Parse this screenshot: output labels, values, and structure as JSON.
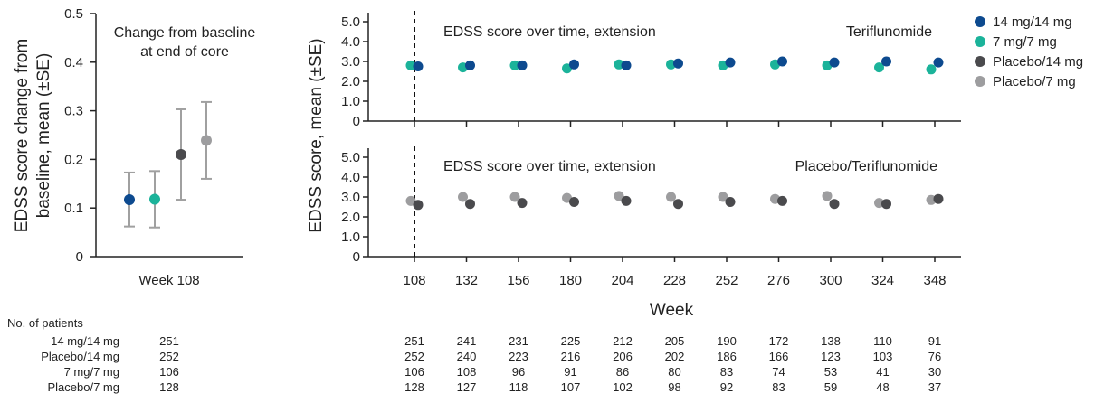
{
  "colors": {
    "14 mg/14 mg": "#0d4a8f",
    "7 mg/7 mg": "#1bb39a",
    "Placebo/14 mg": "#4a4a4d",
    "Placebo/7 mg": "#9d9d9f",
    "axis": "#222222",
    "errorbar": "#a0a0a0"
  },
  "chart_data": [
    {
      "type": "scatter",
      "title": "Change from baseline at end of core",
      "ylabel": "EDSS score change from baseline, mean (±SE)",
      "xlabel": "",
      "categories": [
        "Week 108"
      ],
      "ylim": [
        0,
        0.5
      ],
      "yticks": [
        "0",
        "0.1",
        "0.2",
        "0.3",
        "0.4",
        "0.5"
      ],
      "series": [
        {
          "name": "14 mg/14 mg",
          "value": 0.117,
          "se_low": 0.062,
          "se_high": 0.173
        },
        {
          "name": "7 mg/7 mg",
          "value": 0.118,
          "se_low": 0.06,
          "se_high": 0.176
        },
        {
          "name": "Placebo/14 mg",
          "value": 0.21,
          "se_low": 0.117,
          "se_high": 0.303
        },
        {
          "name": "Placebo/7 mg",
          "value": 0.239,
          "se_low": 0.16,
          "se_high": 0.318
        }
      ]
    },
    {
      "type": "scatter",
      "title": "EDSS score over time, extension",
      "panel_label": "Teriflunomide",
      "x": [
        108,
        132,
        156,
        180,
        204,
        228,
        252,
        276,
        300,
        324,
        348
      ],
      "ylim": [
        0,
        5.0
      ],
      "yticks": [
        "0",
        "1.0",
        "2.0",
        "3.0",
        "4.0",
        "5.0"
      ],
      "series": [
        {
          "name": "7 mg/7 mg",
          "values": [
            2.8,
            2.7,
            2.8,
            2.65,
            2.85,
            2.85,
            2.8,
            2.85,
            2.8,
            2.7,
            2.6
          ]
        },
        {
          "name": "14 mg/14 mg",
          "values": [
            2.75,
            2.8,
            2.8,
            2.85,
            2.8,
            2.9,
            2.95,
            3.0,
            2.95,
            3.0,
            2.95
          ]
        }
      ]
    },
    {
      "type": "scatter",
      "title": "EDSS score over time, extension",
      "panel_label": "Placebo/Teriflunomide",
      "x": [
        108,
        132,
        156,
        180,
        204,
        228,
        252,
        276,
        300,
        324,
        348
      ],
      "ylim": [
        0,
        5.0
      ],
      "yticks": [
        "0",
        "1.0",
        "2.0",
        "3.0",
        "4.0",
        "5.0"
      ],
      "series": [
        {
          "name": "Placebo/7 mg",
          "values": [
            2.8,
            3.0,
            3.0,
            2.95,
            3.05,
            3.0,
            3.0,
            2.9,
            3.05,
            2.7,
            2.85
          ]
        },
        {
          "name": "Placebo/14 mg",
          "values": [
            2.6,
            2.65,
            2.7,
            2.75,
            2.8,
            2.65,
            2.75,
            2.8,
            2.65,
            2.65,
            2.9
          ]
        }
      ]
    }
  ],
  "shared_ylabel": "EDSS score, mean (±SE)",
  "shared_xlabel": "Week",
  "legend": [
    "14 mg/14 mg",
    "7 mg/7 mg",
    "Placebo/14 mg",
    "Placebo/7 mg"
  ],
  "patients_table": {
    "header": "No. of patients",
    "rows": [
      {
        "label": "14 mg/14 mg",
        "core": "251",
        "values": [
          "251",
          "241",
          "231",
          "225",
          "212",
          "205",
          "190",
          "172",
          "138",
          "110",
          "91"
        ]
      },
      {
        "label": "Placebo/14 mg",
        "core": "252",
        "values": [
          "252",
          "240",
          "223",
          "216",
          "206",
          "202",
          "186",
          "166",
          "123",
          "103",
          "76"
        ]
      },
      {
        "label": "7 mg/7 mg",
        "core": "106",
        "values": [
          "106",
          "108",
          "96",
          "91",
          "86",
          "80",
          "83",
          "74",
          "53",
          "41",
          "30"
        ]
      },
      {
        "label": "Placebo/7 mg",
        "core": "128",
        "values": [
          "128",
          "127",
          "118",
          "107",
          "102",
          "98",
          "92",
          "83",
          "59",
          "48",
          "37"
        ]
      }
    ]
  }
}
